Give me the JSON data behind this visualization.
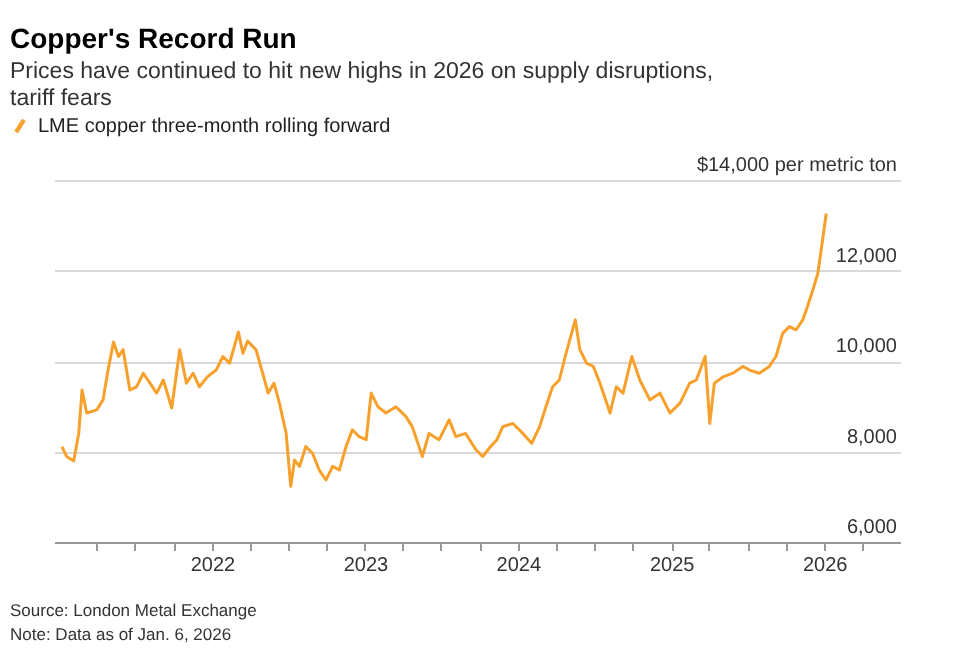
{
  "chart_data": {
    "type": "line",
    "title": "Copper's Record Run",
    "subtitle": [
      "Prices have continued to hit new highs in 2026 on supply disruptions,",
      "tariff fears"
    ],
    "x": [
      "2021-01-08",
      "2021-01-19",
      "2021-02-05",
      "2021-02-17",
      "2021-02-25",
      "2021-03-08",
      "2021-04-01",
      "2021-04-16",
      "2021-04-28",
      "2021-05-11",
      "2021-05-23",
      "2021-06-03",
      "2021-06-19",
      "2021-07-05",
      "2021-07-21",
      "2021-08-06",
      "2021-08-22",
      "2021-09-07",
      "2021-09-27",
      "2021-10-16",
      "2021-11-01",
      "2021-11-17",
      "2021-12-02",
      "2021-12-21",
      "2022-01-11",
      "2022-01-27",
      "2022-02-12",
      "2022-03-05",
      "2022-03-16",
      "2022-03-27",
      "2022-04-16",
      "2022-05-02",
      "2022-05-15",
      "2022-05-29",
      "2022-06-11",
      "2022-06-27",
      "2022-07-08",
      "2022-07-17",
      "2022-07-29",
      "2022-08-13",
      "2022-08-29",
      "2022-09-14",
      "2022-09-30",
      "2022-10-16",
      "2022-11-01",
      "2022-11-17",
      "2022-12-02",
      "2022-12-18",
      "2023-01-04",
      "2023-01-16",
      "2023-02-01",
      "2023-02-20",
      "2023-03-16",
      "2023-04-09",
      "2023-04-24",
      "2023-05-18",
      "2023-06-03",
      "2023-06-27",
      "2023-07-21",
      "2023-08-06",
      "2023-08-29",
      "2023-09-23",
      "2023-10-09",
      "2023-10-28",
      "2023-11-12",
      "2023-11-26",
      "2023-12-20",
      "2024-01-13",
      "2024-02-03",
      "2024-02-22",
      "2024-03-08",
      "2024-03-24",
      "2024-04-09",
      "2024-04-25",
      "2024-05-17",
      "2024-05-28",
      "2024-06-13",
      "2024-06-29",
      "2024-07-15",
      "2024-08-08",
      "2024-08-23",
      "2024-09-08",
      "2024-09-29",
      "2024-10-18",
      "2024-11-11",
      "2024-12-05",
      "2024-12-29",
      "2025-01-22",
      "2025-02-14",
      "2025-03-02",
      "2025-03-23",
      "2025-04-03",
      "2025-04-14",
      "2025-05-05",
      "2025-05-28",
      "2025-06-21",
      "2025-07-07",
      "2025-07-30",
      "2025-08-23",
      "2025-09-08",
      "2025-09-24",
      "2025-10-10",
      "2025-10-26",
      "2025-11-11",
      "2025-11-22",
      "2025-12-05",
      "2025-12-17",
      "2025-12-26",
      "2026-01-06"
    ],
    "series": [
      {
        "name": "LME copper three-month rolling forward",
        "color": "#f7a12c",
        "values": [
          8110,
          7890,
          7790,
          8400,
          9360,
          8850,
          8920,
          9140,
          9800,
          10420,
          10100,
          10250,
          9360,
          9430,
          9730,
          9510,
          9290,
          9580,
          8960,
          10250,
          9510,
          9730,
          9430,
          9650,
          9800,
          10100,
          9950,
          10640,
          10170,
          10440,
          10250,
          9730,
          9290,
          9510,
          9070,
          8400,
          7230,
          7810,
          7670,
          8110,
          7960,
          7590,
          7370,
          7670,
          7590,
          8110,
          8480,
          8330,
          8260,
          9290,
          8990,
          8850,
          8990,
          8770,
          8550,
          7890,
          8400,
          8260,
          8700,
          8330,
          8400,
          8040,
          7890,
          8110,
          8260,
          8550,
          8620,
          8400,
          8180,
          8550,
          8990,
          9430,
          9580,
          10170,
          10910,
          10250,
          9950,
          9880,
          9510,
          8850,
          9430,
          9290,
          10100,
          9580,
          9140,
          9290,
          8850,
          9070,
          9510,
          9580,
          10100,
          8620,
          9510,
          9650,
          9730,
          9880,
          9800,
          9730,
          9880,
          10100,
          10610,
          10760,
          10690,
          10910,
          11200,
          11570,
          11940,
          12530,
          13260
        ]
      }
    ],
    "xlim": [
      "2020-12-20",
      "2026-07-01"
    ],
    "xticks": [
      {
        "value": "2021-04-01",
        "label": null
      },
      {
        "value": "2021-07-01",
        "label": null
      },
      {
        "value": "2021-10-01",
        "label": null
      },
      {
        "value": "2022-01-01",
        "label": "2022"
      },
      {
        "value": "2022-04-01",
        "label": null
      },
      {
        "value": "2022-07-01",
        "label": null
      },
      {
        "value": "2022-10-01",
        "label": null
      },
      {
        "value": "2023-01-01",
        "label": "2023"
      },
      {
        "value": "2023-04-01",
        "label": null
      },
      {
        "value": "2023-07-01",
        "label": null
      },
      {
        "value": "2023-10-01",
        "label": null
      },
      {
        "value": "2024-01-01",
        "label": "2024"
      },
      {
        "value": "2024-04-01",
        "label": null
      },
      {
        "value": "2024-07-01",
        "label": null
      },
      {
        "value": "2024-10-01",
        "label": null
      },
      {
        "value": "2025-01-01",
        "label": "2025"
      },
      {
        "value": "2025-04-01",
        "label": null
      },
      {
        "value": "2025-07-01",
        "label": null
      },
      {
        "value": "2025-10-01",
        "label": null
      },
      {
        "value": "2026-01-01",
        "label": "2026"
      },
      {
        "value": "2026-04-01",
        "label": null
      }
    ],
    "ylim": [
      6000,
      14000
    ],
    "yticks": [
      {
        "value": 6000,
        "label": "6,000"
      },
      {
        "value": 8000,
        "label": "8,000"
      },
      {
        "value": 10000,
        "label": "10,000"
      },
      {
        "value": 12000,
        "label": "12,000"
      },
      {
        "value": 14000,
        "label": "$14,000 per metric ton"
      }
    ],
    "grid": "y",
    "legend": "top left",
    "marker": "none",
    "line_style": "solid",
    "annotations": [
      "Source: London Metal Exchange",
      "Note: Data as of Jan. 6, 2026"
    ]
  }
}
